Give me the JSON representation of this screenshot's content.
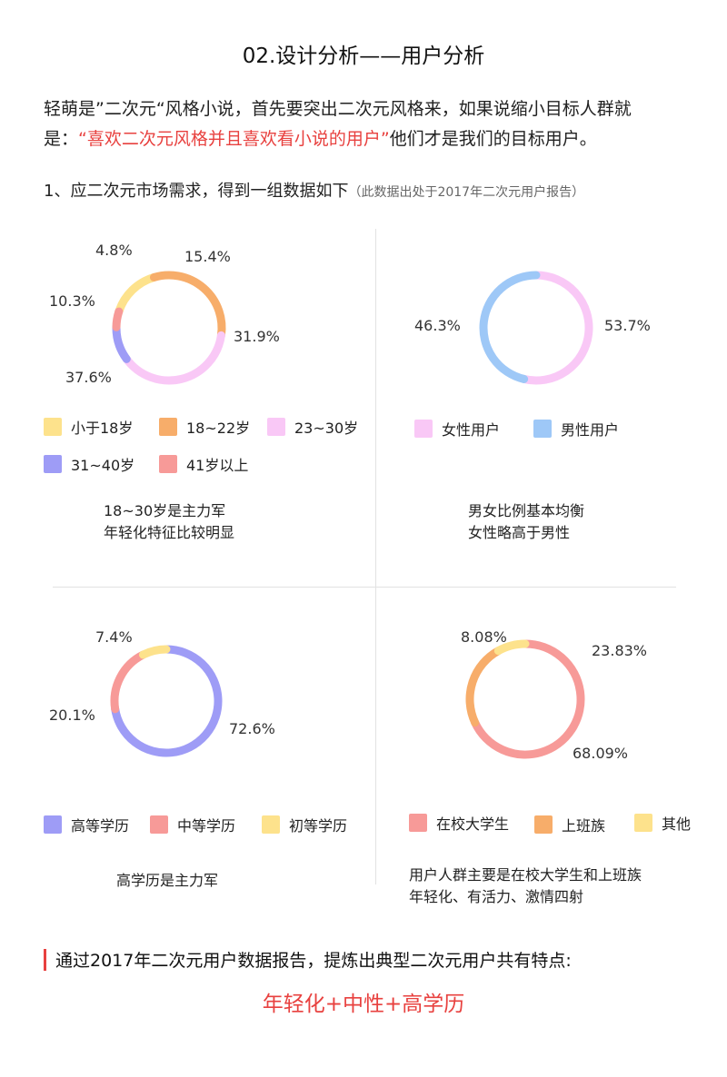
{
  "header": {
    "title": "02.设计分析——用户分析"
  },
  "intro": {
    "line1": "轻萌是”二次元“风格小说，首先要突出二次元风格来，如果说缩小目标人群就",
    "line2_prefix": "是：",
    "line2_highlight": "“喜欢二次元风格并且喜欢看小说的用户”",
    "line2_suffix": "他们才是我们的目标用户。"
  },
  "section1": {
    "heading": "1、应二次元市场需求，得到一组数据如下",
    "note": "（此数据出处于2017年二次元用户报告）"
  },
  "colors": {
    "yellow": "#fde28c",
    "orange": "#f7ad6a",
    "pink": "#f9c8f6",
    "purple": "#9e9cf6",
    "red": "#f79a98",
    "blue": "#9ec8f7",
    "accent": "#e8413f"
  },
  "chart_data": [
    {
      "type": "pie",
      "categories": [
        "小于18岁",
        "18~22岁",
        "23~30岁",
        "31~40岁",
        "41岁以上"
      ],
      "values": [
        15.4,
        31.9,
        37.6,
        10.3,
        4.8
      ],
      "labels": [
        "15.4%",
        "31.9%",
        "37.6%",
        "10.3%",
        "4.8%"
      ],
      "colors": [
        "#fde28c",
        "#f7ad6a",
        "#f9c8f6",
        "#9e9cf6",
        "#f79a98"
      ],
      "summary": [
        "18~30岁是主力军",
        "年轻化特征比较明显"
      ]
    },
    {
      "type": "pie",
      "categories": [
        "女性用户",
        "男性用户"
      ],
      "values": [
        53.7,
        46.3
      ],
      "labels": [
        "53.7%",
        "46.3%"
      ],
      "colors": [
        "#f9c8f6",
        "#9ec8f7"
      ],
      "summary": [
        "男女比例基本均衡",
        "女性略高于男性"
      ]
    },
    {
      "type": "pie",
      "categories": [
        "高等学历",
        "中等学历",
        "初等学历"
      ],
      "values": [
        72.6,
        20.1,
        7.4
      ],
      "labels": [
        "72.6%",
        "20.1%",
        "7.4%"
      ],
      "colors": [
        "#9e9cf6",
        "#f79a98",
        "#fde28c"
      ],
      "summary": [
        "高学历是主力军"
      ]
    },
    {
      "type": "pie",
      "categories": [
        "在校大学生",
        "上班族",
        "其他"
      ],
      "values": [
        68.09,
        23.83,
        8.08
      ],
      "labels": [
        "68.09%",
        "23.83%",
        "8.08%"
      ],
      "colors": [
        "#f79a98",
        "#f7ad6a",
        "#fde28c"
      ],
      "summary": [
        "用户人群主要是在校大学生和上班族",
        "年轻化、有活力、激情四射"
      ]
    }
  ],
  "conclusion": {
    "text": "通过2017年二次元用户数据报告，提炼出典型二次元用户共有特点:",
    "keyword": "年轻化+中性+高学历"
  }
}
